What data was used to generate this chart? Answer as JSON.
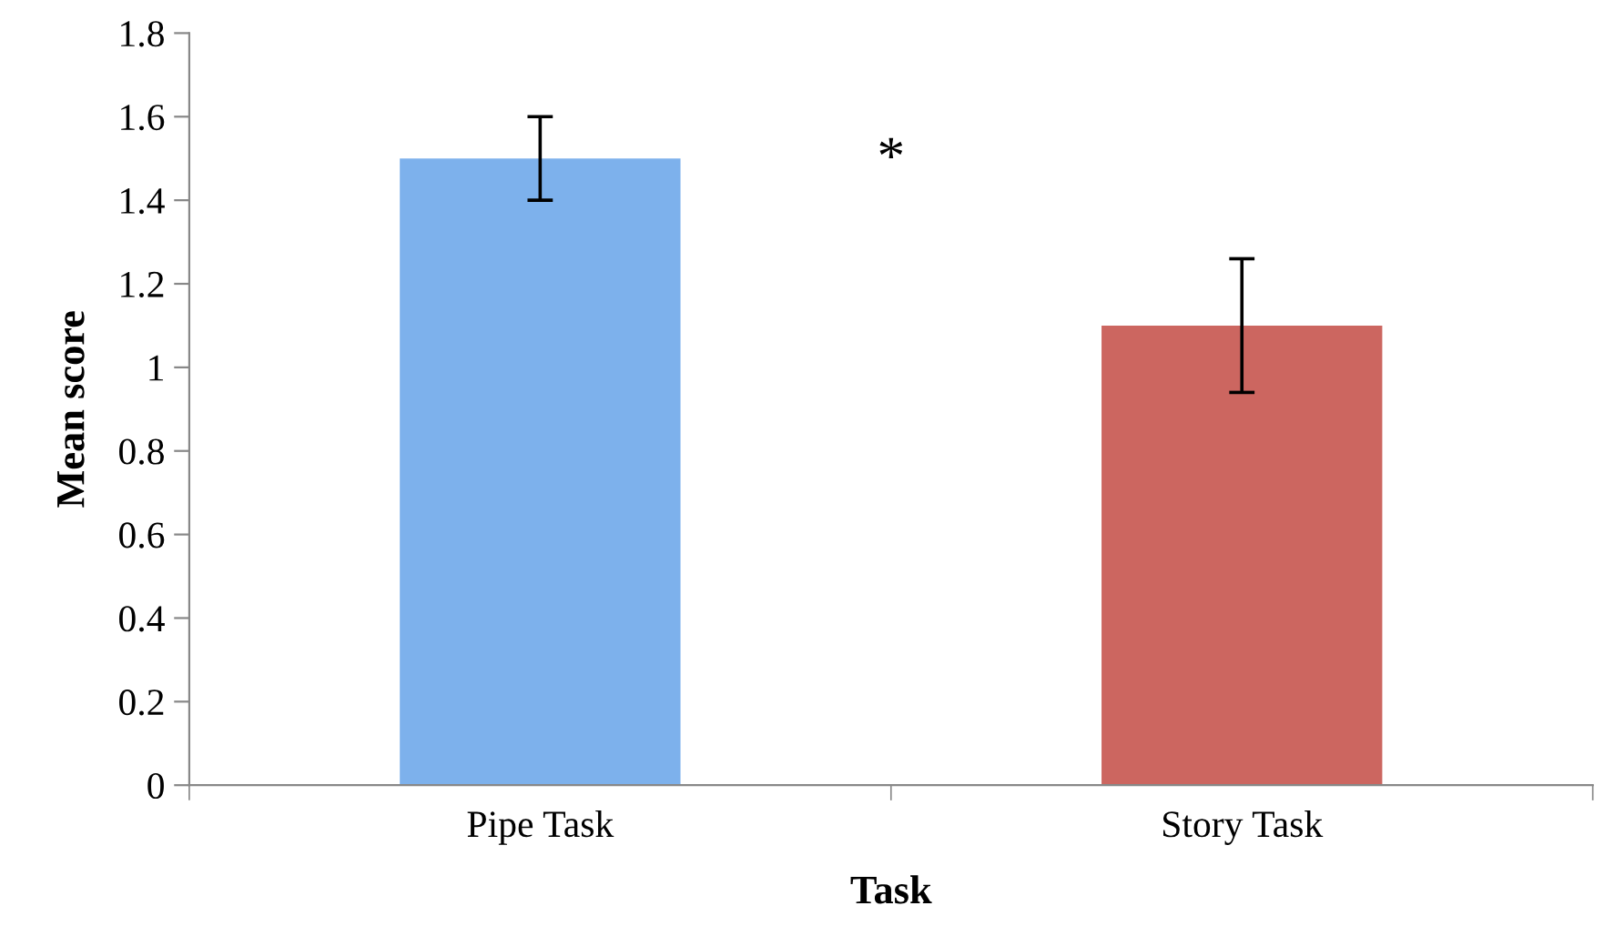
{
  "chart_data": {
    "type": "bar",
    "categories": [
      "Pipe Task",
      "Story Task"
    ],
    "values": [
      1.5,
      1.1
    ],
    "colors": [
      "#7db1ec",
      "#cc6660"
    ],
    "errors": [
      [
        1.4,
        1.6
      ],
      [
        0.94,
        1.26
      ]
    ],
    "xlabel": "Task",
    "ylabel": "Mean score",
    "ylim": [
      0,
      1.8
    ],
    "yticks": [
      0,
      0.2,
      0.4,
      0.6,
      0.8,
      1,
      1.2,
      1.4,
      1.6,
      1.8
    ],
    "annotations": [
      "*"
    ],
    "grid": false,
    "legend": false
  }
}
